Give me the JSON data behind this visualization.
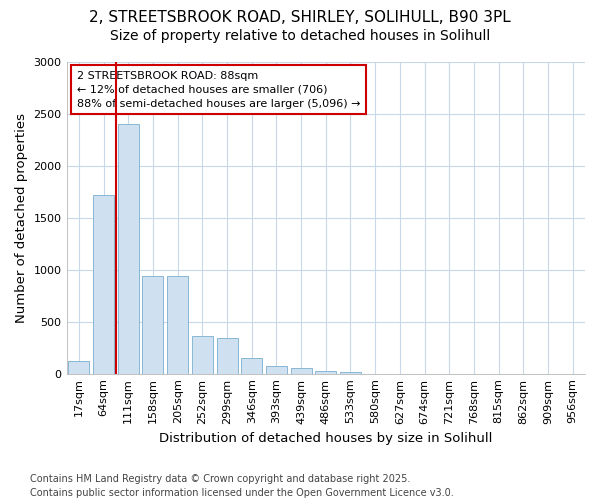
{
  "title_line1": "2, STREETSBROOK ROAD, SHIRLEY, SOLIHULL, B90 3PL",
  "title_line2": "Size of property relative to detached houses in Solihull",
  "xlabel": "Distribution of detached houses by size in Solihull",
  "ylabel": "Number of detached properties",
  "footnote": "Contains HM Land Registry data © Crown copyright and database right 2025.\nContains public sector information licensed under the Open Government Licence v3.0.",
  "bin_labels": [
    "17sqm",
    "64sqm",
    "111sqm",
    "158sqm",
    "205sqm",
    "252sqm",
    "299sqm",
    "346sqm",
    "393sqm",
    "439sqm",
    "486sqm",
    "533sqm",
    "580sqm",
    "627sqm",
    "674sqm",
    "721sqm",
    "768sqm",
    "815sqm",
    "862sqm",
    "909sqm",
    "956sqm"
  ],
  "bar_values": [
    120,
    1720,
    2400,
    940,
    940,
    360,
    340,
    150,
    75,
    50,
    30,
    20,
    0,
    0,
    0,
    0,
    0,
    0,
    0,
    0,
    0
  ],
  "bar_color": "#cfe0f0",
  "bar_edge_color": "#7aafcf",
  "vline_x_idx": 1.5,
  "vline_color": "#cc0000",
  "annotation_text": "2 STREETSBROOK ROAD: 88sqm\n← 12% of detached houses are smaller (706)\n88% of semi-detached houses are larger (5,096) →",
  "annotation_box_color": "#ffffff",
  "annotation_box_edge": "#cc0000",
  "ylim": [
    0,
    3000
  ],
  "yticks": [
    0,
    500,
    1000,
    1500,
    2000,
    2500,
    3000
  ],
  "background_color": "#ffffff",
  "plot_background": "#ffffff",
  "grid_color": "#c8d8e8",
  "title_fontsize": 11,
  "subtitle_fontsize": 10,
  "axis_label_fontsize": 9.5,
  "tick_fontsize": 8,
  "annotation_fontsize": 8,
  "footnote_fontsize": 7
}
